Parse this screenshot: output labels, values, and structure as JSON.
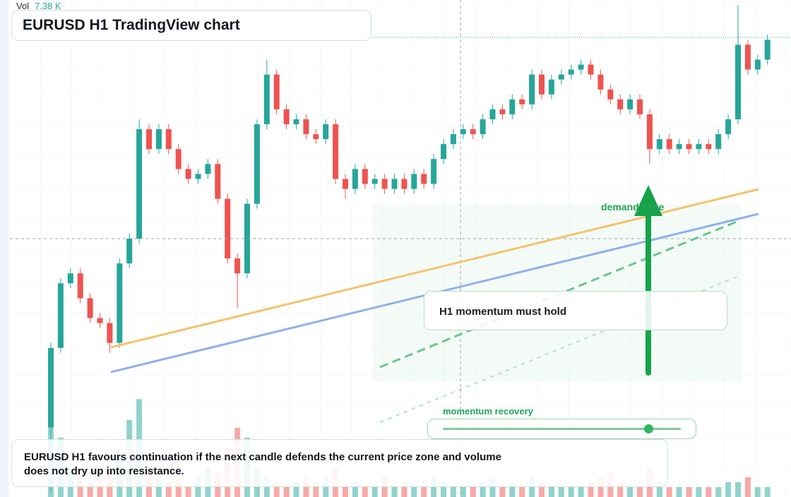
{
  "chart_data": {
    "type": "candlestick",
    "title": "EURUSD H1 TradingView chart",
    "volume_readout": {
      "label": "Vol",
      "value": "7.38 K"
    },
    "annotations": [
      "demand zone",
      "H1 momentum must hold",
      "momentum recovery"
    ],
    "note": "EURUSD H1 favours continuation if the next candle defends the current price zone and volume does not dry up into resistance.",
    "up_color": "#26a69a",
    "down_color": "#ef5350",
    "ylim": [
      0,
      100
    ],
    "volume_ylim": [
      0,
      10
    ],
    "open": [
      14,
      30,
      43,
      45,
      40,
      36,
      35,
      31,
      47,
      52,
      74,
      70,
      74,
      70,
      66,
      64,
      65,
      67,
      60,
      48,
      45,
      59,
      75,
      85,
      78,
      75,
      76,
      73,
      72,
      75,
      64,
      62,
      66,
      63,
      64,
      62,
      64,
      62,
      65,
      63,
      68,
      71,
      73,
      74,
      73,
      76,
      78,
      77,
      80,
      79,
      85,
      81,
      84,
      85,
      86,
      87,
      85,
      82,
      80,
      78,
      80,
      77,
      70,
      72,
      70,
      71,
      70,
      71,
      70,
      73,
      76,
      91,
      86,
      88
    ],
    "high": [
      31,
      44,
      46,
      46,
      41,
      37,
      36,
      48,
      53,
      76,
      75,
      75,
      75,
      71,
      67,
      66,
      68,
      68,
      61,
      49,
      60,
      76,
      88,
      86,
      79,
      77,
      77,
      74,
      76,
      76,
      65,
      67,
      67,
      65,
      65,
      65,
      65,
      66,
      66,
      69,
      72,
      74,
      75,
      75,
      77,
      79,
      79,
      81,
      81,
      86,
      86,
      85,
      86,
      87,
      88,
      88,
      86,
      83,
      81,
      81,
      81,
      78,
      73,
      73,
      72,
      72,
      72,
      72,
      74,
      77,
      99,
      92,
      89,
      93
    ],
    "low": [
      1,
      29,
      42,
      39,
      35,
      34,
      29,
      30,
      46,
      51,
      69,
      69,
      69,
      65,
      63,
      63,
      64,
      59,
      47,
      38,
      44,
      58,
      74,
      77,
      74,
      74,
      72,
      71,
      71,
      63,
      60,
      61,
      62,
      62,
      61,
      61,
      61,
      61,
      62,
      62,
      67,
      70,
      72,
      72,
      72,
      75,
      76,
      76,
      78,
      78,
      80,
      80,
      83,
      84,
      85,
      84,
      81,
      79,
      77,
      77,
      76,
      67,
      69,
      69,
      69,
      69,
      69,
      69,
      69,
      72,
      75,
      85,
      85,
      87
    ],
    "close": [
      30,
      43,
      45,
      40,
      36,
      35,
      31,
      47,
      52,
      74,
      70,
      74,
      70,
      66,
      64,
      65,
      67,
      60,
      48,
      45,
      59,
      75,
      85,
      78,
      75,
      76,
      73,
      72,
      75,
      64,
      62,
      66,
      63,
      64,
      62,
      64,
      62,
      65,
      63,
      68,
      71,
      73,
      74,
      73,
      76,
      78,
      77,
      80,
      79,
      85,
      81,
      84,
      85,
      86,
      87,
      85,
      82,
      80,
      78,
      80,
      77,
      70,
      72,
      70,
      71,
      70,
      71,
      70,
      73,
      76,
      91,
      86,
      88,
      92
    ],
    "volume": [
      9.5,
      6,
      3,
      2,
      1.5,
      2,
      3,
      4,
      7.8,
      9.9,
      3,
      2,
      1.5,
      2,
      1,
      2,
      3,
      2.5,
      5,
      7,
      6,
      3,
      2,
      1.5,
      1,
      1.5,
      2,
      1.5,
      2,
      3,
      1,
      1.5,
      1,
      1,
      2,
      1,
      1.5,
      1,
      1,
      2,
      1.5,
      1,
      1,
      1,
      1.5,
      2,
      1,
      1.5,
      1,
      2,
      1.5,
      1,
      1,
      1,
      1,
      1.5,
      2,
      2.5,
      1.5,
      1,
      1,
      3,
      1.5,
      1,
      1,
      1,
      1,
      1,
      1,
      1.5,
      1.5,
      2,
      1,
      1
    ]
  }
}
